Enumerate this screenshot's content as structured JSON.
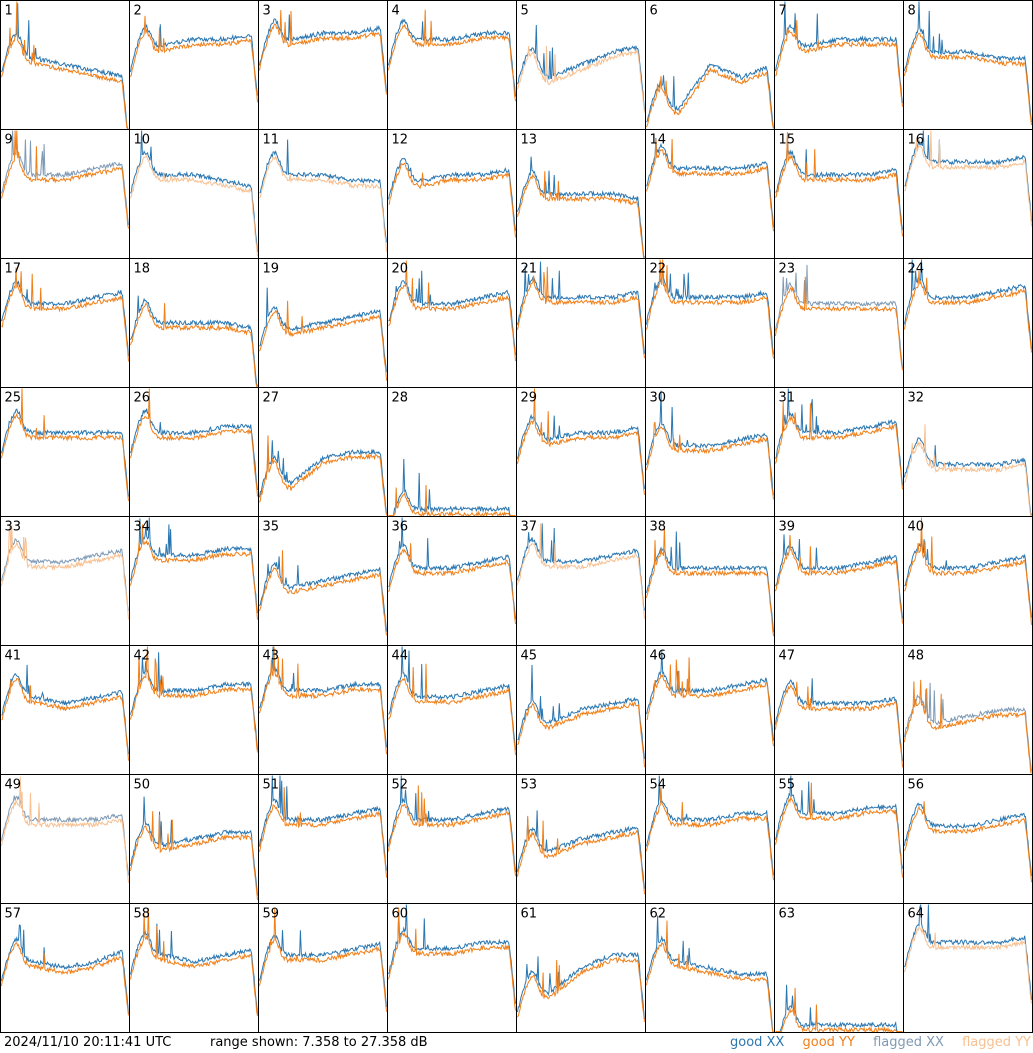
{
  "footer": {
    "timestamp": "2024/11/10 20:11:41 UTC",
    "range_text": "range shown: 7.358 to 27.358 dB",
    "legend": {
      "good_xx": "good XX",
      "good_yy": "good YY",
      "flagged_xx": "flagged XX",
      "flagged_yy": "flagged YY"
    }
  },
  "colors": {
    "good_xx": "#2b77b1",
    "good_yy": "#f0801a",
    "flagged_xx": "#7f9ab5",
    "flagged_yy": "#f8c090"
  },
  "chart_data": {
    "type": "line",
    "layout": "8x8 small multiples",
    "y_range_db": [
      7.358,
      27.358
    ],
    "series_names": [
      "good XX",
      "good YY",
      "flagged XX",
      "flagged YY"
    ],
    "panels": [
      {
        "id": "1",
        "xx": "good",
        "yy": "good",
        "base": [
          20,
          18,
          17,
          16,
          15
        ]
      },
      {
        "id": "2",
        "xx": "good",
        "yy": "good",
        "base": [
          20,
          20,
          21,
          21,
          22
        ]
      },
      {
        "id": "3",
        "xx": "good",
        "yy": "good",
        "base": [
          21,
          21,
          22,
          22,
          23
        ]
      },
      {
        "id": "4",
        "xx": "good",
        "yy": "good",
        "base": [
          21,
          21,
          21,
          22,
          22
        ]
      },
      {
        "id": "5",
        "xx": "good",
        "yy": "flagged",
        "base": [
          18,
          15,
          17,
          19,
          20
        ]
      },
      {
        "id": "6",
        "xx": "good",
        "yy": "good",
        "base": [
          12,
          10,
          17,
          15,
          17
        ]
      },
      {
        "id": "7",
        "xx": "good",
        "yy": "good",
        "base": [
          20,
          20,
          21,
          21,
          21
        ]
      },
      {
        "id": "8",
        "xx": "good",
        "yy": "good",
        "base": [
          20,
          19,
          19,
          18,
          18
        ]
      },
      {
        "id": "9",
        "xx": "flagged",
        "yy": "good",
        "base": [
          21,
          20,
          20,
          21,
          22
        ]
      },
      {
        "id": "10",
        "xx": "good",
        "yy": "flagged",
        "base": [
          21,
          20,
          20,
          19,
          18
        ]
      },
      {
        "id": "11",
        "xx": "good",
        "yy": "flagged",
        "base": [
          21,
          20,
          20,
          19,
          19
        ]
      },
      {
        "id": "12",
        "xx": "good",
        "yy": "good",
        "base": [
          20,
          19,
          20,
          20,
          21
        ]
      },
      {
        "id": "13",
        "xx": "good",
        "yy": "good",
        "base": [
          18,
          17,
          17,
          17,
          16
        ]
      },
      {
        "id": "14",
        "xx": "good",
        "yy": "good",
        "base": [
          22,
          21,
          21,
          21,
          22
        ]
      },
      {
        "id": "15",
        "xx": "good",
        "yy": "good",
        "base": [
          21,
          20,
          20,
          20,
          21
        ]
      },
      {
        "id": "16",
        "xx": "good",
        "yy": "flagged",
        "base": [
          22,
          22,
          22,
          22,
          23
        ]
      },
      {
        "id": "17",
        "xx": "good",
        "yy": "good",
        "base": [
          21,
          20,
          20,
          21,
          22
        ]
      },
      {
        "id": "18",
        "xx": "good",
        "yy": "good",
        "base": [
          18,
          17,
          17,
          17,
          16
        ]
      },
      {
        "id": "19",
        "xx": "good",
        "yy": "good",
        "base": [
          17,
          16,
          17,
          18,
          19
        ]
      },
      {
        "id": "20",
        "xx": "good",
        "yy": "good",
        "base": [
          21,
          20,
          20,
          21,
          22
        ]
      },
      {
        "id": "21",
        "xx": "good",
        "yy": "good",
        "base": [
          21,
          21,
          21,
          21,
          22
        ]
      },
      {
        "id": "22",
        "xx": "good",
        "yy": "good",
        "base": [
          21,
          21,
          21,
          21,
          22
        ]
      },
      {
        "id": "23",
        "xx": "flagged",
        "yy": "good",
        "base": [
          20,
          20,
          20,
          20,
          20
        ]
      },
      {
        "id": "24",
        "xx": "good",
        "yy": "good",
        "base": [
          21,
          21,
          21,
          22,
          23
        ]
      },
      {
        "id": "25",
        "xx": "good",
        "yy": "good",
        "base": [
          21,
          20,
          20,
          20,
          20
        ]
      },
      {
        "id": "26",
        "xx": "good",
        "yy": "good",
        "base": [
          21,
          20,
          20,
          21,
          21
        ]
      },
      {
        "id": "27",
        "xx": "good",
        "yy": "good",
        "base": [
          14,
          12,
          16,
          17,
          17
        ]
      },
      {
        "id": "28",
        "xx": "good",
        "yy": "good",
        "base": [
          8,
          8,
          8,
          8,
          8
        ]
      },
      {
        "id": "29",
        "xx": "good",
        "yy": "good",
        "base": [
          20,
          19,
          20,
          20,
          21
        ]
      },
      {
        "id": "30",
        "xx": "good",
        "yy": "good",
        "base": [
          19,
          18,
          18,
          19,
          20
        ]
      },
      {
        "id": "31",
        "xx": "good",
        "yy": "good",
        "base": [
          20,
          20,
          20,
          21,
          22
        ]
      },
      {
        "id": "32",
        "xx": "good",
        "yy": "flagged",
        "base": [
          17,
          15,
          15,
          15,
          16
        ]
      },
      {
        "id": "33",
        "xx": "flagged",
        "yy": "flagged",
        "base": [
          21,
          20,
          20,
          21,
          22
        ]
      },
      {
        "id": "34",
        "xx": "good",
        "yy": "good",
        "base": [
          21,
          21,
          21,
          22,
          22
        ]
      },
      {
        "id": "35",
        "xx": "good",
        "yy": "good",
        "base": [
          17,
          16,
          17,
          18,
          19
        ]
      },
      {
        "id": "36",
        "xx": "good",
        "yy": "good",
        "base": [
          20,
          19,
          19,
          20,
          21
        ]
      },
      {
        "id": "37",
        "xx": "good",
        "yy": "flagged",
        "base": [
          21,
          20,
          20,
          21,
          22
        ]
      },
      {
        "id": "38",
        "xx": "good",
        "yy": "good",
        "base": [
          19,
          19,
          19,
          19,
          19
        ]
      },
      {
        "id": "39",
        "xx": "good",
        "yy": "good",
        "base": [
          20,
          19,
          19,
          20,
          21
        ]
      },
      {
        "id": "40",
        "xx": "good",
        "yy": "good",
        "base": [
          20,
          19,
          19,
          20,
          21
        ]
      },
      {
        "id": "41",
        "xx": "good",
        "yy": "good",
        "base": [
          20,
          19,
          18,
          19,
          20
        ]
      },
      {
        "id": "42",
        "xx": "good",
        "yy": "good",
        "base": [
          20,
          20,
          20,
          21,
          21
        ]
      },
      {
        "id": "43",
        "xx": "good",
        "yy": "good",
        "base": [
          21,
          20,
          20,
          21,
          21
        ]
      },
      {
        "id": "44",
        "xx": "good",
        "yy": "good",
        "base": [
          20,
          19,
          19,
          20,
          21
        ]
      },
      {
        "id": "45",
        "xx": "good",
        "yy": "good",
        "base": [
          16,
          15,
          17,
          18,
          19
        ]
      },
      {
        "id": "46",
        "xx": "good",
        "yy": "good",
        "base": [
          20,
          20,
          20,
          21,
          22
        ]
      },
      {
        "id": "47",
        "xx": "good",
        "yy": "good",
        "base": [
          19,
          18,
          18,
          18,
          19
        ]
      },
      {
        "id": "48",
        "xx": "flagged",
        "yy": "good",
        "base": [
          17,
          15,
          16,
          17,
          17
        ]
      },
      {
        "id": "49",
        "xx": "flagged",
        "yy": "flagged",
        "base": [
          21,
          20,
          20,
          20,
          21
        ]
      },
      {
        "id": "50",
        "xx": "good",
        "yy": "good",
        "base": [
          17,
          16,
          17,
          18,
          18
        ]
      },
      {
        "id": "51",
        "xx": "good",
        "yy": "good",
        "base": [
          20,
          20,
          20,
          21,
          22
        ]
      },
      {
        "id": "52",
        "xx": "good",
        "yy": "good",
        "base": [
          20,
          20,
          20,
          21,
          22
        ]
      },
      {
        "id": "53",
        "xx": "good",
        "yy": "good",
        "base": [
          16,
          15,
          17,
          18,
          19
        ]
      },
      {
        "id": "54",
        "xx": "good",
        "yy": "good",
        "base": [
          20,
          20,
          20,
          21,
          21
        ]
      },
      {
        "id": "55",
        "xx": "good",
        "yy": "good",
        "base": [
          21,
          21,
          21,
          22,
          22
        ]
      },
      {
        "id": "56",
        "xx": "good",
        "yy": "good",
        "base": [
          20,
          19,
          19,
          20,
          21
        ]
      },
      {
        "id": "57",
        "xx": "good",
        "yy": "good",
        "base": [
          19,
          18,
          17,
          18,
          20
        ]
      },
      {
        "id": "58",
        "xx": "good",
        "yy": "good",
        "base": [
          20,
          19,
          18,
          19,
          20
        ]
      },
      {
        "id": "59",
        "xx": "good",
        "yy": "good",
        "base": [
          19,
          19,
          19,
          20,
          21
        ]
      },
      {
        "id": "60",
        "xx": "good",
        "yy": "good",
        "base": [
          20,
          20,
          20,
          21,
          21
        ]
      },
      {
        "id": "61",
        "xx": "good",
        "yy": "good",
        "base": [
          14,
          13,
          17,
          19,
          19
        ]
      },
      {
        "id": "62",
        "xx": "good",
        "yy": "good",
        "base": [
          19,
          18,
          17,
          16,
          16
        ]
      },
      {
        "id": "63",
        "xx": "good",
        "yy": "good",
        "base": [
          8,
          8,
          8,
          8,
          8
        ]
      },
      {
        "id": "64",
        "xx": "good",
        "yy": "flagged",
        "base": [
          21,
          21,
          21,
          21,
          22
        ]
      }
    ]
  }
}
